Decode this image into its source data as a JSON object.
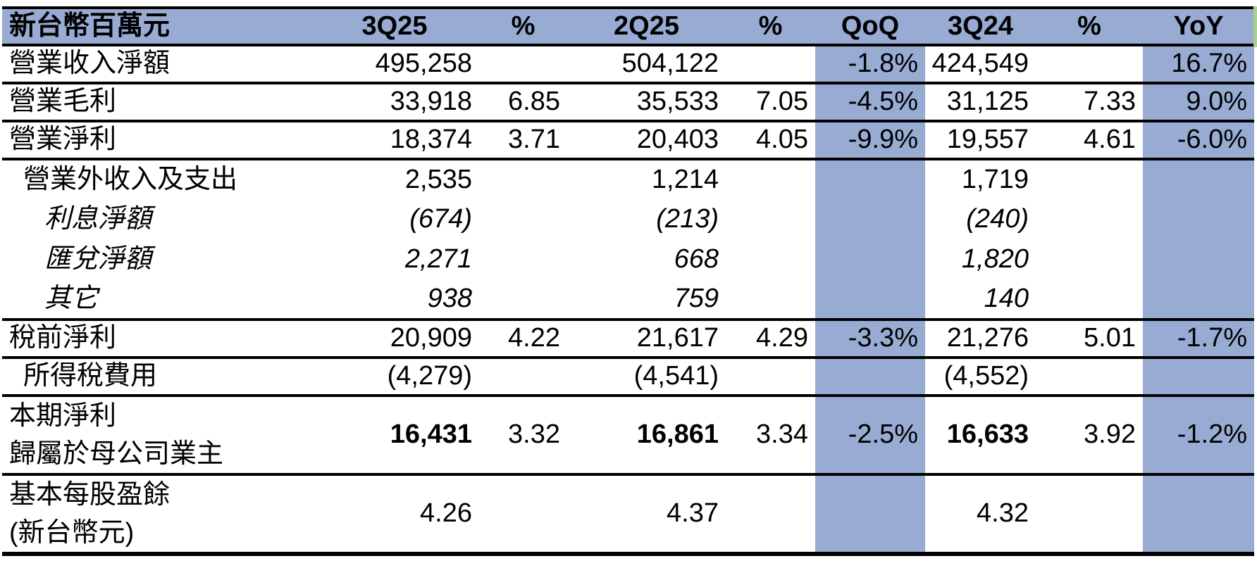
{
  "colors": {
    "highlight_blue": "#98ACD3",
    "border_black": "#000000",
    "header_right_green": "#A9D18E"
  },
  "header": {
    "unit_label": "新台幣百萬元",
    "columns": [
      "3Q25",
      "%",
      "2Q25",
      "%",
      "QoQ",
      "3Q24",
      "%",
      "YoY"
    ]
  },
  "rows": [
    {
      "label": "營業收入淨額",
      "indent": 0,
      "italic": false,
      "tall": false,
      "block": false,
      "divider": true,
      "last": false,
      "bold_cols": [],
      "values": [
        "495,258",
        "",
        "504,122",
        "",
        "-1.8%",
        "424,549",
        "",
        "16.7%"
      ]
    },
    {
      "label": "營業毛利",
      "indent": 0,
      "italic": false,
      "tall": false,
      "block": false,
      "divider": true,
      "last": false,
      "bold_cols": [],
      "values": [
        "33,918",
        "6.85",
        "35,533",
        "7.05",
        "-4.5%",
        "31,125",
        "7.33",
        "9.0%"
      ]
    },
    {
      "label": "營業淨利",
      "indent": 0,
      "italic": false,
      "tall": false,
      "block": false,
      "divider": true,
      "last": false,
      "bold_cols": [],
      "values": [
        "18,374",
        "3.71",
        "20,403",
        "4.05",
        "-9.9%",
        "19,557",
        "4.61",
        "-6.0%"
      ]
    },
    {
      "label": "營業外收入及支出",
      "indent": 1,
      "italic": false,
      "tall": false,
      "block": true,
      "divider": false,
      "last": false,
      "bold_cols": [],
      "values": [
        "2,535",
        "",
        "1,214",
        "",
        "",
        "1,719",
        "",
        ""
      ]
    },
    {
      "label": "利息淨額",
      "indent": 2,
      "italic": true,
      "tall": false,
      "block": true,
      "divider": false,
      "last": false,
      "bold_cols": [],
      "values": [
        "(674)",
        "",
        "(213)",
        "",
        "",
        "(240)",
        "",
        ""
      ]
    },
    {
      "label": "匯兌淨額",
      "indent": 2,
      "italic": true,
      "tall": false,
      "block": true,
      "divider": false,
      "last": false,
      "bold_cols": [],
      "values": [
        "2,271",
        "",
        "668",
        "",
        "",
        "1,820",
        "",
        ""
      ]
    },
    {
      "label": "其它",
      "indent": 2,
      "italic": true,
      "tall": false,
      "block": true,
      "divider": true,
      "last": false,
      "bold_cols": [],
      "values": [
        "938",
        "",
        "759",
        "",
        "",
        "140",
        "",
        ""
      ]
    },
    {
      "label": "稅前淨利",
      "indent": 0,
      "italic": false,
      "tall": false,
      "block": false,
      "divider": true,
      "last": false,
      "bold_cols": [],
      "values": [
        "20,909",
        "4.22",
        "21,617",
        "4.29",
        "-3.3%",
        "21,276",
        "5.01",
        "-1.7%"
      ]
    },
    {
      "label": "所得稅費用",
      "indent": 1,
      "italic": false,
      "tall": false,
      "block": false,
      "divider": true,
      "last": false,
      "bold_cols": [],
      "values": [
        "(4,279)",
        "",
        "(4,541)",
        "",
        "",
        "(4,552)",
        "",
        ""
      ]
    },
    {
      "label": "本期淨利",
      "label2": "歸屬於母公司業主",
      "indent": 0,
      "italic": false,
      "tall": true,
      "block": false,
      "divider": true,
      "last": false,
      "bold_cols": [
        0,
        2,
        5
      ],
      "values": [
        "16,431",
        "3.32",
        "16,861",
        "3.34",
        "-2.5%",
        "16,633",
        "3.92",
        "-1.2%"
      ]
    },
    {
      "label": "基本每股盈餘",
      "label2": "(新台幣元)",
      "indent": 0,
      "italic": false,
      "tall": true,
      "block": false,
      "divider": false,
      "last": true,
      "bold_cols": [],
      "values": [
        "4.26",
        "",
        "4.37",
        "",
        "",
        "4.32",
        "",
        ""
      ]
    }
  ]
}
